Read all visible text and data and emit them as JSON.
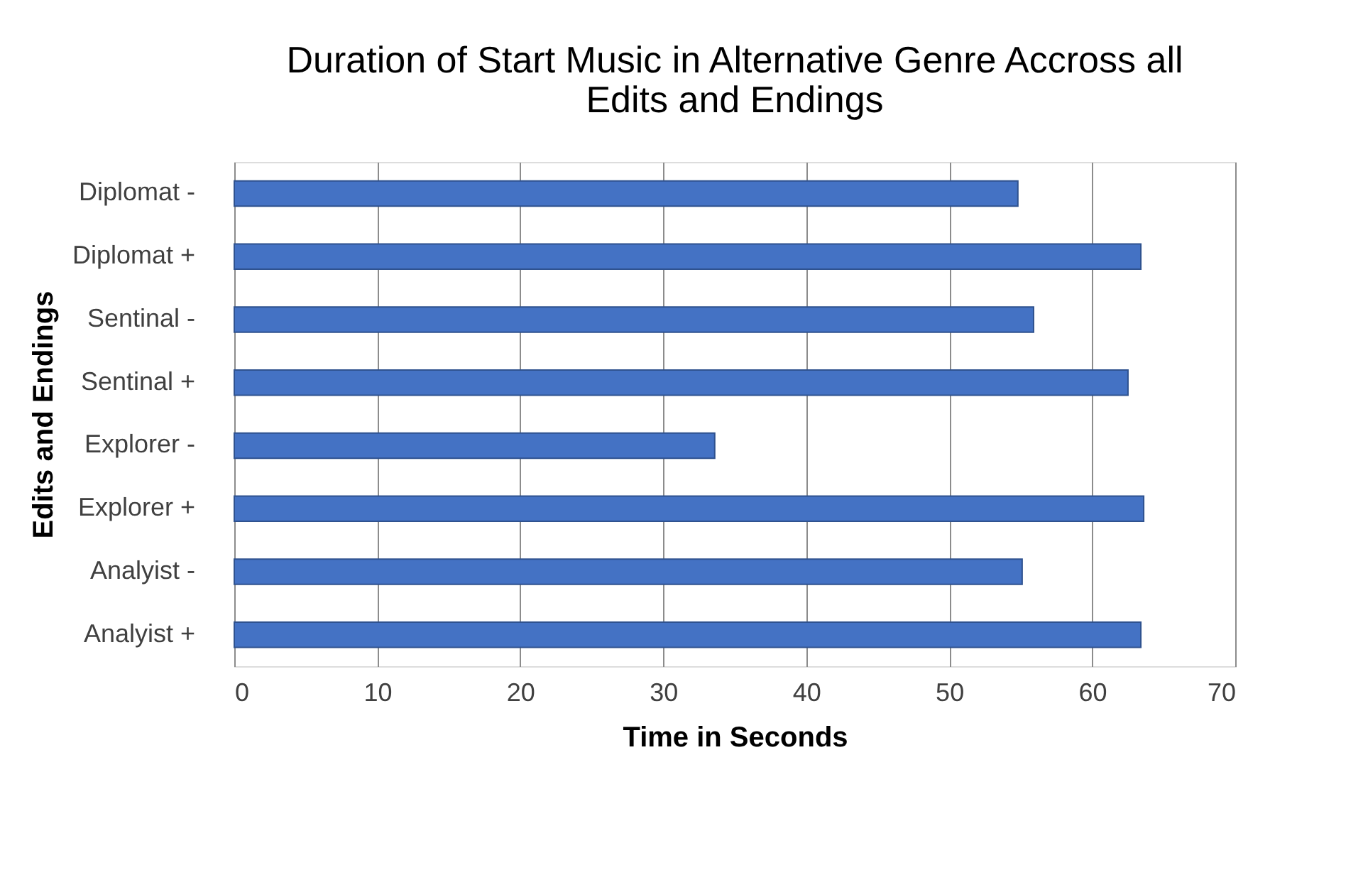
{
  "chart_data": {
    "type": "bar",
    "orientation": "horizontal",
    "title": [
      "Duration of Start Music in Alternative Genre Accross all",
      "Edits and Endings"
    ],
    "xlabel": "Time in Seconds",
    "ylabel": "Edits and Endings",
    "categories": [
      "Diplomat -",
      "Diplomat +",
      "Sentinal -",
      "Sentinal +",
      "Explorer -",
      "Explorer +",
      "Analyist -",
      "Analyist +"
    ],
    "values": [
      54.8,
      63.4,
      55.9,
      62.5,
      33.6,
      63.6,
      55.1,
      63.4
    ],
    "color": "#4472c4",
    "xlim": [
      0,
      70
    ],
    "xticks": [
      0,
      10,
      20,
      30,
      40,
      50,
      60,
      70
    ],
    "grid": "x"
  }
}
